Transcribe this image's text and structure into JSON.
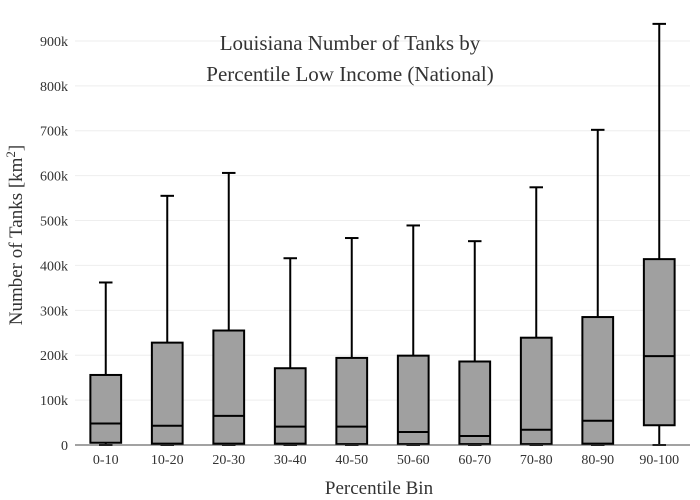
{
  "chart_data": {
    "type": "box",
    "title_lines": [
      "Louisiana Number of Tanks by",
      "Percentile Low Income (National)"
    ],
    "xlabel": "Percentile Bin",
    "ylabel_main": "Number of Tanks  [km",
    "ylabel_sup": "2",
    "ylabel_close": "]",
    "ylim": [
      0,
      960000
    ],
    "y_ticks": [
      0,
      100000,
      200000,
      300000,
      400000,
      500000,
      600000,
      700000,
      800000,
      900000
    ],
    "y_tick_labels": [
      "0",
      "100k",
      "200k",
      "300k",
      "400k",
      "500k",
      "600k",
      "700k",
      "800k",
      "900k"
    ],
    "grid": true,
    "categories": [
      "0-10",
      "10-20",
      "20-30",
      "30-40",
      "40-50",
      "50-60",
      "60-70",
      "70-80",
      "80-90",
      "90-100"
    ],
    "boxes": [
      {
        "min": 0,
        "q1": 5000,
        "median": 48000,
        "q3": 156000,
        "max": 362000
      },
      {
        "min": 0,
        "q1": 3000,
        "median": 43000,
        "q3": 228000,
        "max": 555000
      },
      {
        "min": 0,
        "q1": 3000,
        "median": 65000,
        "q3": 255000,
        "max": 606000
      },
      {
        "min": 0,
        "q1": 3000,
        "median": 41000,
        "q3": 171000,
        "max": 416000
      },
      {
        "min": 0,
        "q1": 2000,
        "median": 41000,
        "q3": 194000,
        "max": 461000
      },
      {
        "min": 0,
        "q1": 2000,
        "median": 29000,
        "q3": 199000,
        "max": 489000
      },
      {
        "min": 0,
        "q1": 2000,
        "median": 20000,
        "q3": 186000,
        "max": 454000
      },
      {
        "min": 0,
        "q1": 2000,
        "median": 34000,
        "q3": 239000,
        "max": 574000
      },
      {
        "min": 0,
        "q1": 3000,
        "median": 54000,
        "q3": 285000,
        "max": 702000
      },
      {
        "min": 0,
        "q1": 44000,
        "median": 198000,
        "q3": 414000,
        "max": 938000
      }
    ]
  }
}
